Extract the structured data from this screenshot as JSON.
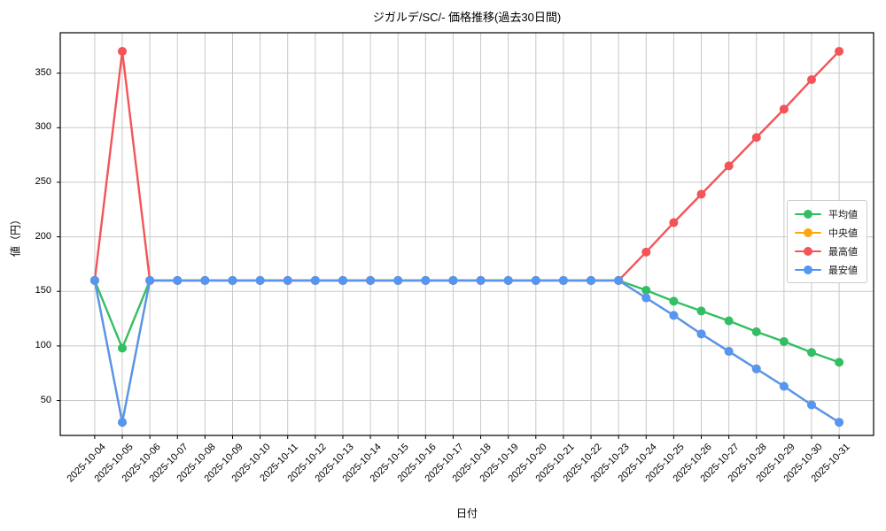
{
  "chart_data": {
    "type": "line",
    "title": "ジガルデ/SC/- 価格推移(過去30日間)",
    "xlabel": "日付",
    "ylabel": "値（円）",
    "categories": [
      "2025-10-04",
      "2025-10-05",
      "2025-10-06",
      "2025-10-07",
      "2025-10-08",
      "2025-10-09",
      "2025-10-10",
      "2025-10-11",
      "2025-10-12",
      "2025-10-13",
      "2025-10-14",
      "2025-10-15",
      "2025-10-16",
      "2025-10-17",
      "2025-10-18",
      "2025-10-19",
      "2025-10-20",
      "2025-10-21",
      "2025-10-22",
      "2025-10-23",
      "2025-10-24",
      "2025-10-25",
      "2025-10-26",
      "2025-10-27",
      "2025-10-28",
      "2025-10-29",
      "2025-10-30",
      "2025-10-31"
    ],
    "yticks": [
      50,
      100,
      150,
      200,
      250,
      300,
      350
    ],
    "ylim": [
      18,
      387
    ],
    "x_pad": 1.25,
    "grid": true,
    "grid_color": "#c8c8c8",
    "background_color": "#ffffff",
    "spine_color": "#000000",
    "legend_position": "center-right",
    "series": [
      {
        "name": "平均値",
        "id": "average",
        "color": "#34be64",
        "values": [
          160,
          98,
          160,
          160,
          160,
          160,
          160,
          160,
          160,
          160,
          160,
          160,
          160,
          160,
          160,
          160,
          160,
          160,
          160,
          160,
          151,
          141,
          132,
          123,
          113,
          104,
          94,
          85
        ]
      },
      {
        "name": "中央値",
        "id": "median",
        "color": "#ffa511",
        "values": [
          160,
          30,
          160,
          160,
          160,
          160,
          160,
          160,
          160,
          160,
          160,
          160,
          160,
          160,
          160,
          160,
          160,
          160,
          160,
          160,
          144,
          128,
          111,
          95,
          79,
          63,
          46,
          30
        ]
      },
      {
        "name": "最高値",
        "id": "highest",
        "color": "#f45458",
        "values": [
          160,
          370,
          160,
          160,
          160,
          160,
          160,
          160,
          160,
          160,
          160,
          160,
          160,
          160,
          160,
          160,
          160,
          160,
          160,
          160,
          186,
          213,
          239,
          265,
          291,
          317,
          344,
          370
        ]
      },
      {
        "name": "最安値",
        "id": "lowest",
        "color": "#5596f2",
        "values": [
          160,
          30,
          160,
          160,
          160,
          160,
          160,
          160,
          160,
          160,
          160,
          160,
          160,
          160,
          160,
          160,
          160,
          160,
          160,
          160,
          144,
          128,
          111,
          95,
          79,
          63,
          46,
          30
        ]
      }
    ]
  }
}
